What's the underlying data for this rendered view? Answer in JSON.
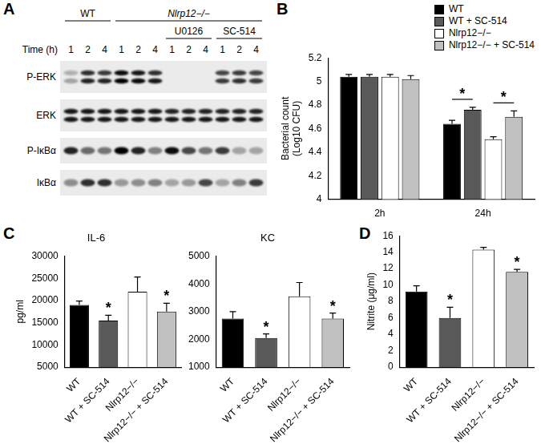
{
  "blot": {
    "panel": "A",
    "time_label": "Time (h)",
    "lanes": [
      {
        "genotype": "WT",
        "treatment": null,
        "time": 1
      },
      {
        "genotype": "WT",
        "treatment": null,
        "time": 2
      },
      {
        "genotype": "WT",
        "treatment": null,
        "time": 4
      },
      {
        "genotype": "Nlrp12−/−",
        "treatment": null,
        "time": 1
      },
      {
        "genotype": "Nlrp12−/−",
        "treatment": null,
        "time": 2
      },
      {
        "genotype": "Nlrp12−/−",
        "treatment": null,
        "time": 4
      },
      {
        "genotype": "Nlrp12−/−",
        "treatment": "U0126",
        "time": 1
      },
      {
        "genotype": "Nlrp12−/−",
        "treatment": "U0126",
        "time": 2
      },
      {
        "genotype": "Nlrp12−/−",
        "treatment": "U0126",
        "time": 4
      },
      {
        "genotype": "Nlrp12−/−",
        "treatment": "SC-514",
        "time": 1
      },
      {
        "genotype": "Nlrp12−/−",
        "treatment": "SC-514",
        "time": 2
      },
      {
        "genotype": "Nlrp12−/−",
        "treatment": "SC-514",
        "time": 4
      }
    ],
    "rows": [
      {
        "label": "P-ERK",
        "bands": [
          [
            0.25,
            0.3
          ],
          [
            0.8,
            0.85
          ],
          [
            0.75,
            0.85
          ],
          [
            0.95,
            1.0
          ],
          [
            0.9,
            0.95
          ],
          [
            0.8,
            0.9
          ],
          [
            0.0,
            0.0
          ],
          [
            0.0,
            0.0
          ],
          [
            0.0,
            0.0
          ],
          [
            0.7,
            0.75
          ],
          [
            0.75,
            0.8
          ],
          [
            0.7,
            0.75
          ]
        ]
      },
      {
        "label": "ERK",
        "bands": [
          [
            0.9,
            0.9
          ],
          [
            0.9,
            0.9
          ],
          [
            0.9,
            0.9
          ],
          [
            0.9,
            0.9
          ],
          [
            0.9,
            0.9
          ],
          [
            0.9,
            0.9
          ],
          [
            0.85,
            0.9
          ],
          [
            0.85,
            0.9
          ],
          [
            0.85,
            0.9
          ],
          [
            0.85,
            0.9
          ],
          [
            0.85,
            0.9
          ],
          [
            0.85,
            0.9
          ]
        ]
      },
      {
        "label": "P-IκBα",
        "bands": [
          0.85,
          0.55,
          0.5,
          1.0,
          0.85,
          0.45,
          0.95,
          0.7,
          0.5,
          0.75,
          0.3,
          0.3
        ]
      },
      {
        "label": "IκBα",
        "bands": [
          0.4,
          0.8,
          0.8,
          0.35,
          0.4,
          0.45,
          0.3,
          0.35,
          0.7,
          0.3,
          0.45,
          0.75
        ]
      }
    ]
  },
  "chart_data": [
    {
      "panel": "B",
      "type": "bar",
      "categories": [
        "2h",
        "24h"
      ],
      "y_label": [
        "Bacterial count",
        "(Log10 CFU)"
      ],
      "series": [
        {
          "name": "WT",
          "color": "#000000",
          "values": [
            5.04,
            4.64
          ],
          "errors": [
            0.02,
            0.03
          ]
        },
        {
          "name": "WT + SC-514",
          "color": "#595959",
          "values": [
            5.04,
            4.76
          ],
          "errors": [
            0.02,
            0.02
          ]
        },
        {
          "name": "Nlrp12−/−",
          "color": "#ffffff",
          "values": [
            5.04,
            4.51
          ],
          "errors": [
            0.02,
            0.02
          ]
        },
        {
          "name": "Nlrp12−/− + SC-514",
          "color": "#c0c0c0",
          "values": [
            5.02,
            4.7
          ],
          "errors": [
            0.03,
            0.05
          ]
        }
      ],
      "ylim": [
        4,
        5.2
      ],
      "yticks": [
        4,
        4.2,
        4.4,
        4.6,
        4.8,
        5,
        5.2
      ],
      "grid": false,
      "legend": "top-right",
      "annotations": [
        {
          "text": "*",
          "category": "24h",
          "from": "WT",
          "to": "WT + SC-514"
        },
        {
          "text": "*",
          "category": "24h",
          "from": "Nlrp12−/−",
          "to": "Nlrp12−/− + SC-514"
        }
      ]
    },
    {
      "panel": "C",
      "type": "bar",
      "title": "IL-6",
      "y_label": [
        "pg/ml"
      ],
      "categories": [
        "WT",
        "WT + SC-514",
        "Nlrp12−/−",
        "Nlrp12−/− + SC-514"
      ],
      "values": [
        19000,
        15500,
        22000,
        17500
      ],
      "errors": [
        900,
        1200,
        3300,
        1900
      ],
      "colors": [
        "#000000",
        "#595959",
        "#ffffff",
        "#c0c0c0"
      ],
      "ylim": [
        5000,
        30000
      ],
      "yticks": [
        5000,
        10000,
        15000,
        20000,
        25000,
        30000
      ],
      "grid": false,
      "annotations": [
        {
          "text": "*",
          "category": "WT + SC-514"
        },
        {
          "text": "*",
          "category": "Nlrp12−/− + SC-514"
        }
      ]
    },
    {
      "type": "bar",
      "title": "KC",
      "categories": [
        "WT",
        "WT + SC-514",
        "Nlrp12−/−",
        "Nlrp12−/− + SC-514"
      ],
      "values": [
        2750,
        2050,
        3550,
        2750
      ],
      "errors": [
        250,
        150,
        500,
        200
      ],
      "colors": [
        "#000000",
        "#595959",
        "#ffffff",
        "#c0c0c0"
      ],
      "ylim": [
        1000,
        5000
      ],
      "yticks": [
        1000,
        2000,
        3000,
        4000,
        5000
      ],
      "grid": false,
      "annotations": [
        {
          "text": "*",
          "category": "WT + SC-514"
        },
        {
          "text": "*",
          "category": "Nlrp12−/− + SC-514"
        }
      ]
    },
    {
      "panel": "D",
      "type": "bar",
      "y_label": [
        "Nitrite (μg/ml)"
      ],
      "categories": [
        "WT",
        "WT + SC-514",
        "Nlrp12−/−",
        "Nlrp12−/− + SC-514"
      ],
      "values": [
        9.2,
        6.0,
        14.3,
        11.6
      ],
      "errors": [
        0.7,
        1.3,
        0.3,
        0.3
      ],
      "colors": [
        "#000000",
        "#595959",
        "#ffffff",
        "#c0c0c0"
      ],
      "ylim": [
        0,
        16
      ],
      "yticks": [
        0,
        2,
        4,
        6,
        8,
        10,
        12,
        14,
        16
      ],
      "grid": false,
      "annotations": [
        {
          "text": "*",
          "category": "WT + SC-514"
        },
        {
          "text": "*",
          "category": "Nlrp12−/− + SC-514"
        }
      ]
    }
  ]
}
